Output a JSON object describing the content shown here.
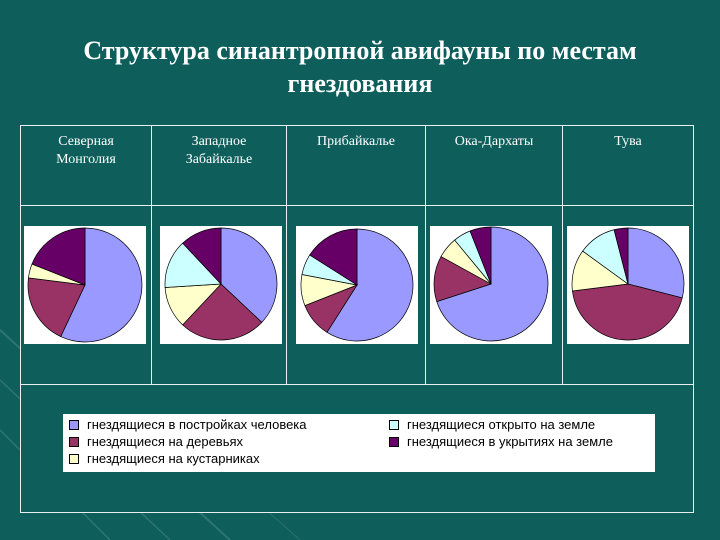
{
  "title_line1": "Структура синантропной авифауны по местам",
  "title_line2": "гнездования",
  "colors": {
    "buildings": "#9999ff",
    "trees": "#993366",
    "shrubs": "#ffffcc",
    "open_ground": "#ccffff",
    "covered_ground": "#660066"
  },
  "legend": {
    "buildings": "гнездящиеся в постройках человека",
    "trees": "гнездящиеся на деревьях",
    "shrubs": "гнездящиеся на кустарниках",
    "open_ground": "гнездящиеся открыто на земле",
    "covered_ground": "гнездящиеся в укрытиях на земле"
  },
  "regions": [
    {
      "line1": "Северная",
      "line2": "Монголия"
    },
    {
      "line1": "Западное",
      "line2": "Забайкалье"
    },
    {
      "line1": "Прибайкалье",
      "line2": ""
    },
    {
      "line1": "Ока-Дархаты",
      "line2": ""
    },
    {
      "line1": "Тува",
      "line2": ""
    }
  ],
  "chart_data": [
    {
      "type": "pie",
      "title": "Северная Монголия",
      "categories": [
        "гнездящиеся в постройках человека",
        "гнездящиеся на деревьях",
        "гнездящиеся на кустарниках",
        "гнездящиеся открыто на земле",
        "гнездящиеся в укрытиях на земле"
      ],
      "values": [
        57,
        20,
        4,
        0,
        19
      ]
    },
    {
      "type": "pie",
      "title": "Западное Забайкалье",
      "categories": [
        "гнездящиеся в постройках человека",
        "гнездящиеся на деревьях",
        "гнездящиеся на кустарниках",
        "гнездящиеся открыто на земле",
        "гнездящиеся в укрытиях на земле"
      ],
      "values": [
        37,
        25,
        12,
        14,
        12
      ]
    },
    {
      "type": "pie",
      "title": "Прибайкалье",
      "categories": [
        "гнездящиеся в постройках человека",
        "гнездящиеся на деревьях",
        "гнездящиеся на кустарниках",
        "гнездящиеся открыто на земле",
        "гнездящиеся в укрытиях на земле"
      ],
      "values": [
        59,
        10,
        9,
        6,
        16
      ]
    },
    {
      "type": "pie",
      "title": "Ока-Дархаты",
      "categories": [
        "гнездящиеся в постройках человека",
        "гнездящиеся на деревьях",
        "гнездящиеся на кустарниках",
        "гнездящиеся открыто на земле",
        "гнездящиеся в укрытиях на земле"
      ],
      "values": [
        70,
        13,
        6,
        5,
        6
      ]
    },
    {
      "type": "pie",
      "title": "Тува",
      "categories": [
        "гнездящиеся в постройках человека",
        "гнездящиеся на деревьях",
        "гнездящиеся на кустарниках",
        "гнездящиеся открыто на земле",
        "гнездящиеся в укрытиях на земле"
      ],
      "values": [
        29,
        44,
        12,
        11,
        4
      ]
    }
  ]
}
